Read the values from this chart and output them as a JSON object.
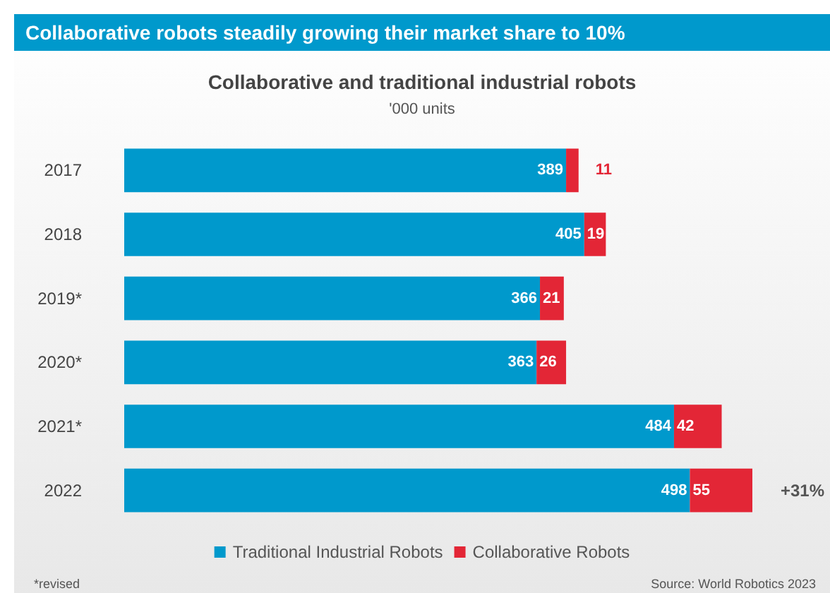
{
  "chart_data": {
    "type": "bar",
    "orientation": "horizontal",
    "stacked": true,
    "title": "Collaborative robots steadily growing their market share to 10%",
    "subtitle": "Collaborative and traditional industrial robots",
    "categories": [
      "2017",
      "2018",
      "2019*",
      "2020*",
      "2021*",
      "2022"
    ],
    "series": [
      {
        "name": "Traditional Industrial Robots",
        "color": "#0099cc",
        "values": [
          389,
          405,
          366,
          363,
          484,
          498
        ]
      },
      {
        "name": "Collaborative Robots",
        "color": "#e32636",
        "values": [
          11,
          19,
          21,
          26,
          42,
          55
        ]
      }
    ],
    "data_labels": true,
    "tick_labels": "y",
    "grid": false,
    "legend": "bottom",
    "annotations": [
      "'000 units",
      {
        "text": "+31%",
        "x": 553,
        "y": "2022"
      },
      "*revised",
      "Source: World Robotics 2023"
    ]
  }
}
